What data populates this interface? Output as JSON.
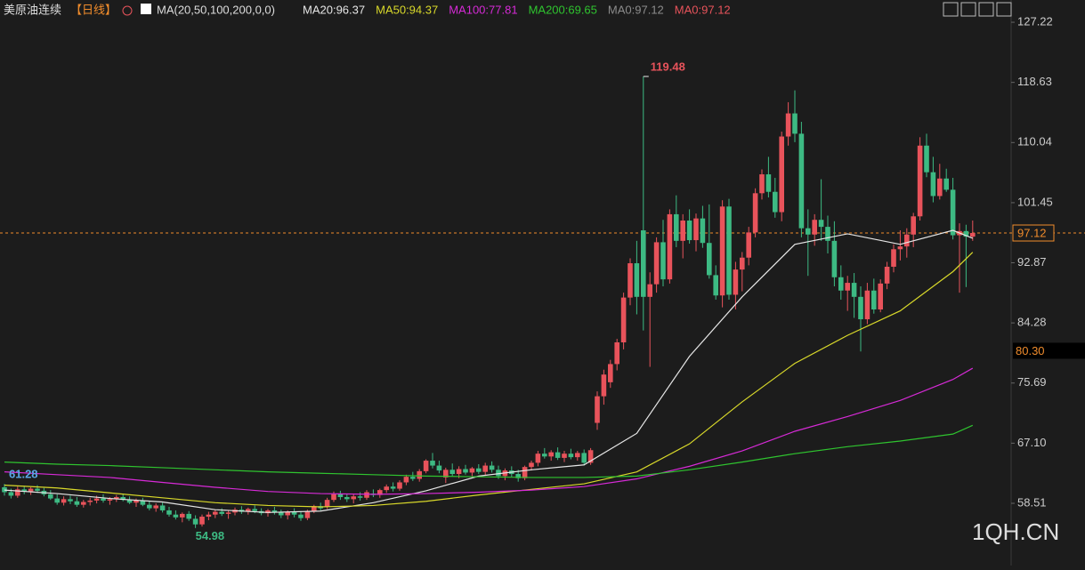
{
  "chart_data": {
    "type": "candlestick",
    "title": "美原油连续",
    "period": "【日线】",
    "indicator": "MA(20,50,100,200,0,0)",
    "extra_labels": [
      {
        "text": "MA0:97.12",
        "color": "#8c8c8c"
      },
      {
        "text": "MA0:97.12",
        "color": "#e8535b"
      }
    ],
    "up_color": "#e8535b",
    "down_color": "#3dba83",
    "ylim": [
      49.62,
      130.4
    ],
    "yticks": [
      127.22,
      118.63,
      110.04,
      101.45,
      92.87,
      84.28,
      75.69,
      {
        "value": 67.1,
        "label": "67.10"
      },
      58.51
    ],
    "last_price": {
      "value": 97.12,
      "label": "97.12",
      "color": "#f08c2c"
    },
    "marker": {
      "value": 80.3,
      "label": "80.30",
      "color": "#f08c2c"
    },
    "max_label": 119.48,
    "min_label": 54.98,
    "left_label": 61.28,
    "watermark": "1QH.CN",
    "candles": [
      [
        60.8,
        61.28,
        59.6,
        60.1
      ],
      [
        60.1,
        60.6,
        59.2,
        59.6
      ],
      [
        59.6,
        60.9,
        59.3,
        60.5
      ],
      [
        60.5,
        61.0,
        59.8,
        60.2
      ],
      [
        60.2,
        60.8,
        59.7,
        60.6
      ],
      [
        60.6,
        61.1,
        60.0,
        60.3
      ],
      [
        60.3,
        60.7,
        59.5,
        59.8
      ],
      [
        59.8,
        60.4,
        59.0,
        59.2
      ],
      [
        59.2,
        59.8,
        58.3,
        58.6
      ],
      [
        58.6,
        59.5,
        58.2,
        59.1
      ],
      [
        59.1,
        59.6,
        58.4,
        58.8
      ],
      [
        58.8,
        59.4,
        58.0,
        58.3
      ],
      [
        58.3,
        59.0,
        57.9,
        58.7
      ],
      [
        58.7,
        59.3,
        58.2,
        58.9
      ],
      [
        58.9,
        59.6,
        58.5,
        59.2
      ],
      [
        59.2,
        59.8,
        58.6,
        58.9
      ],
      [
        58.9,
        59.4,
        58.3,
        59.1
      ],
      [
        59.1,
        59.7,
        58.7,
        59.4
      ],
      [
        59.4,
        59.9,
        58.8,
        59.0
      ],
      [
        59.0,
        59.5,
        58.4,
        58.6
      ],
      [
        58.6,
        59.2,
        58.0,
        58.9
      ],
      [
        58.9,
        59.3,
        58.1,
        58.3
      ],
      [
        58.3,
        58.8,
        57.5,
        57.8
      ],
      [
        57.8,
        58.5,
        57.3,
        58.2
      ],
      [
        58.2,
        58.6,
        57.2,
        57.5
      ],
      [
        57.5,
        58.0,
        56.6,
        56.9
      ],
      [
        56.9,
        57.5,
        56.2,
        56.5
      ],
      [
        56.5,
        57.2,
        55.8,
        57.0
      ],
      [
        57.0,
        57.4,
        56.0,
        56.3
      ],
      [
        56.3,
        56.8,
        54.98,
        55.5
      ],
      [
        55.5,
        56.9,
        55.2,
        56.6
      ],
      [
        56.6,
        57.3,
        56.1,
        56.9
      ],
      [
        56.9,
        57.6,
        56.4,
        57.3
      ],
      [
        57.3,
        57.8,
        56.7,
        57.0
      ],
      [
        57.0,
        57.5,
        56.3,
        57.2
      ],
      [
        57.2,
        57.9,
        56.8,
        57.6
      ],
      [
        57.6,
        58.1,
        57.0,
        57.3
      ],
      [
        57.3,
        57.9,
        56.9,
        57.7
      ],
      [
        57.7,
        58.2,
        57.1,
        57.4
      ],
      [
        57.4,
        57.8,
        56.8,
        57.1
      ],
      [
        57.1,
        57.7,
        56.6,
        57.5
      ],
      [
        57.5,
        58.0,
        56.9,
        57.2
      ],
      [
        57.2,
        57.6,
        56.4,
        56.8
      ],
      [
        56.8,
        57.5,
        56.2,
        57.3
      ],
      [
        57.3,
        57.8,
        56.5,
        56.9
      ],
      [
        56.9,
        57.4,
        56.0,
        56.4
      ],
      [
        56.4,
        57.6,
        56.1,
        57.4
      ],
      [
        57.4,
        58.3,
        57.1,
        58.1
      ],
      [
        58.1,
        58.6,
        57.5,
        57.8
      ],
      [
        58.0,
        59.3,
        57.7,
        59.0
      ],
      [
        59.0,
        60.2,
        58.7,
        59.8
      ],
      [
        59.8,
        60.3,
        59.0,
        59.4
      ],
      [
        59.4,
        59.9,
        58.7,
        59.1
      ],
      [
        59.1,
        59.8,
        58.5,
        59.5
      ],
      [
        59.5,
        60.1,
        58.9,
        59.3
      ],
      [
        59.3,
        60.4,
        59.0,
        60.1
      ],
      [
        59.9,
        60.5,
        59.4,
        59.7
      ],
      [
        59.7,
        60.6,
        59.3,
        60.4
      ],
      [
        60.4,
        61.2,
        60.0,
        60.9
      ],
      [
        60.9,
        61.5,
        60.2,
        60.6
      ],
      [
        60.6,
        61.8,
        60.3,
        61.5
      ],
      [
        61.5,
        62.6,
        61.1,
        62.3
      ],
      [
        62.3,
        63.0,
        61.7,
        62.0
      ],
      [
        62.0,
        63.4,
        61.6,
        63.1
      ],
      [
        63.1,
        64.8,
        62.8,
        64.6
      ],
      [
        64.6,
        65.7,
        63.5,
        63.9
      ],
      [
        63.9,
        64.6,
        62.8,
        63.2
      ],
      [
        62.2,
        63.6,
        61.4,
        63.3
      ],
      [
        63.3,
        64.2,
        62.4,
        62.7
      ],
      [
        62.7,
        63.8,
        62.1,
        63.4
      ],
      [
        63.4,
        64.0,
        62.6,
        62.9
      ],
      [
        62.9,
        63.7,
        62.3,
        63.5
      ],
      [
        63.5,
        64.1,
        62.7,
        63.0
      ],
      [
        63.0,
        64.3,
        62.5,
        63.9
      ],
      [
        63.9,
        64.5,
        62.9,
        63.3
      ],
      [
        63.3,
        63.9,
        62.0,
        62.4
      ],
      [
        62.4,
        63.5,
        61.8,
        63.2
      ],
      [
        63.2,
        63.8,
        62.3,
        62.7
      ],
      [
        62.7,
        63.3,
        61.6,
        62.1
      ],
      [
        62.1,
        63.9,
        61.8,
        63.7
      ],
      [
        63.7,
        64.6,
        63.2,
        64.3
      ],
      [
        64.3,
        66.0,
        63.8,
        65.6
      ],
      [
        65.6,
        66.4,
        64.9,
        65.2
      ],
      [
        65.2,
        66.1,
        64.6,
        65.8
      ],
      [
        65.8,
        66.5,
        64.7,
        65.0
      ],
      [
        65.0,
        66.0,
        64.4,
        65.6
      ],
      [
        65.6,
        66.3,
        64.8,
        65.1
      ],
      [
        65.1,
        66.0,
        64.6,
        65.7
      ],
      [
        65.7,
        66.2,
        63.9,
        64.3
      ],
      [
        64.3,
        66.4,
        64.0,
        66.1
      ],
      [
        70.0,
        74.5,
        69.0,
        73.8
      ],
      [
        73.8,
        77.6,
        72.6,
        76.9
      ],
      [
        75.8,
        79.0,
        75.0,
        78.4
      ],
      [
        78.4,
        82.0,
        77.5,
        81.5
      ],
      [
        81.5,
        88.6,
        80.5,
        87.9
      ],
      [
        87.9,
        93.5,
        86.8,
        92.8
      ],
      [
        92.8,
        96.0,
        85.5,
        88.0
      ],
      [
        97.5,
        119.48,
        83.2,
        88.0
      ],
      [
        88.0,
        91.5,
        78.0,
        89.8
      ],
      [
        89.8,
        96.5,
        88.6,
        95.8
      ],
      [
        95.8,
        99.0,
        89.5,
        90.5
      ],
      [
        90.5,
        100.5,
        89.9,
        99.8
      ],
      [
        99.8,
        102.5,
        95.1,
        96.0
      ],
      [
        96.0,
        99.8,
        93.5,
        98.9
      ],
      [
        98.9,
        100.5,
        95.6,
        96.1
      ],
      [
        96.1,
        99.9,
        94.5,
        99.2
      ],
      [
        99.2,
        101.0,
        95.0,
        95.7
      ],
      [
        95.7,
        101.2,
        90.6,
        91.1
      ],
      [
        91.1,
        92.5,
        87.6,
        88.2
      ],
      [
        88.2,
        101.8,
        86.5,
        100.9
      ],
      [
        100.9,
        102.0,
        87.6,
        88.3
      ],
      [
        88.3,
        93.0,
        86.2,
        91.9
      ],
      [
        91.9,
        94.4,
        88.8,
        93.6
      ],
      [
        93.6,
        98.0,
        92.5,
        97.2
      ],
      [
        97.2,
        103.5,
        96.5,
        102.8
      ],
      [
        102.8,
        106.2,
        101.9,
        105.5
      ],
      [
        105.5,
        108.0,
        102.2,
        103.0
      ],
      [
        103.0,
        105.0,
        99.3,
        100.1
      ],
      [
        100.1,
        111.6,
        98.8,
        110.9
      ],
      [
        110.9,
        115.8,
        109.6,
        114.2
      ],
      [
        114.2,
        117.5,
        110.1,
        111.3
      ],
      [
        111.3,
        113.0,
        96.5,
        97.8
      ],
      [
        97.8,
        100.5,
        91.0,
        96.9
      ],
      [
        96.9,
        99.8,
        95.3,
        99.0
      ],
      [
        99.0,
        104.8,
        96.0,
        98.0
      ],
      [
        98.0,
        99.6,
        94.2,
        96.0
      ],
      [
        96.0,
        98.8,
        89.5,
        90.8
      ],
      [
        90.8,
        92.5,
        87.6,
        88.9
      ],
      [
        88.9,
        91.0,
        86.0,
        90.0
      ],
      [
        90.0,
        91.4,
        85.0,
        88.0
      ],
      [
        88.0,
        89.5,
        80.2,
        84.8
      ],
      [
        84.8,
        90.0,
        84.1,
        88.9
      ],
      [
        88.9,
        90.6,
        85.6,
        86.2
      ],
      [
        86.2,
        90.5,
        85.8,
        89.9
      ],
      [
        89.9,
        93.0,
        89.1,
        92.3
      ],
      [
        92.3,
        95.5,
        91.5,
        94.8
      ],
      [
        94.8,
        97.5,
        93.2,
        95.2
      ],
      [
        95.2,
        97.8,
        93.6,
        96.9
      ],
      [
        96.9,
        100.0,
        95.1,
        99.5
      ],
      [
        99.5,
        110.8,
        98.9,
        109.6
      ],
      [
        109.6,
        111.3,
        105.1,
        105.8
      ],
      [
        105.8,
        108.0,
        101.5,
        102.4
      ],
      [
        102.4,
        107.0,
        101.9,
        104.9
      ],
      [
        104.9,
        106.3,
        103.0,
        103.3
      ],
      [
        103.3,
        105.0,
        96.2,
        96.8
      ],
      [
        96.8,
        98.5,
        88.6,
        97.4
      ],
      [
        97.4,
        98.3,
        89.4,
        96.6
      ],
      [
        96.6,
        98.9,
        96.0,
        97.12
      ]
    ],
    "series": [
      {
        "name": "MA20",
        "label": "MA20:96.37",
        "color": "#e6e6e6",
        "x": [
          0,
          8,
          16,
          24,
          32,
          40,
          48,
          56,
          64,
          72,
          80,
          88,
          96,
          104,
          112,
          120,
          128,
          136,
          144,
          147
        ],
        "values": [
          60.4,
          59.9,
          59.2,
          58.7,
          57.6,
          57.2,
          57.4,
          58.6,
          60.3,
          62.4,
          63.3,
          64.0,
          68.5,
          79.5,
          88.0,
          95.5,
          97.0,
          95.5,
          97.5,
          96.37
        ]
      },
      {
        "name": "MA50",
        "label": "MA50:94.37",
        "color": "#d9d92a",
        "x": [
          0,
          8,
          16,
          24,
          32,
          40,
          48,
          56,
          64,
          72,
          80,
          88,
          96,
          104,
          112,
          120,
          128,
          136,
          144,
          147
        ],
        "values": [
          61.1,
          60.7,
          60.0,
          59.3,
          58.6,
          58.2,
          58.0,
          58.2,
          58.8,
          59.7,
          60.5,
          61.3,
          63.0,
          67.0,
          73.0,
          78.5,
          82.5,
          86.0,
          91.6,
          94.37
        ]
      },
      {
        "name": "MA100",
        "label": "MA100:77.81",
        "color": "#d62ad6",
        "x": [
          0,
          8,
          16,
          24,
          32,
          40,
          48,
          56,
          64,
          72,
          80,
          88,
          96,
          104,
          112,
          120,
          128,
          136,
          144,
          147
        ],
        "values": [
          63.0,
          62.6,
          62.2,
          61.5,
          60.8,
          60.2,
          59.9,
          59.8,
          59.9,
          60.1,
          60.4,
          60.9,
          62.0,
          63.8,
          66.0,
          68.8,
          70.9,
          73.2,
          76.2,
          77.81
        ]
      },
      {
        "name": "MA200",
        "label": "MA200:69.65",
        "color": "#2fc42f",
        "x": [
          0,
          8,
          16,
          24,
          32,
          40,
          48,
          56,
          64,
          72,
          80,
          88,
          96,
          104,
          112,
          120,
          128,
          136,
          144,
          147
        ],
        "values": [
          64.4,
          64.1,
          63.9,
          63.6,
          63.3,
          63.0,
          62.8,
          62.6,
          62.4,
          62.3,
          62.2,
          62.2,
          62.4,
          63.3,
          64.4,
          65.6,
          66.6,
          67.4,
          68.4,
          69.65
        ]
      }
    ]
  }
}
